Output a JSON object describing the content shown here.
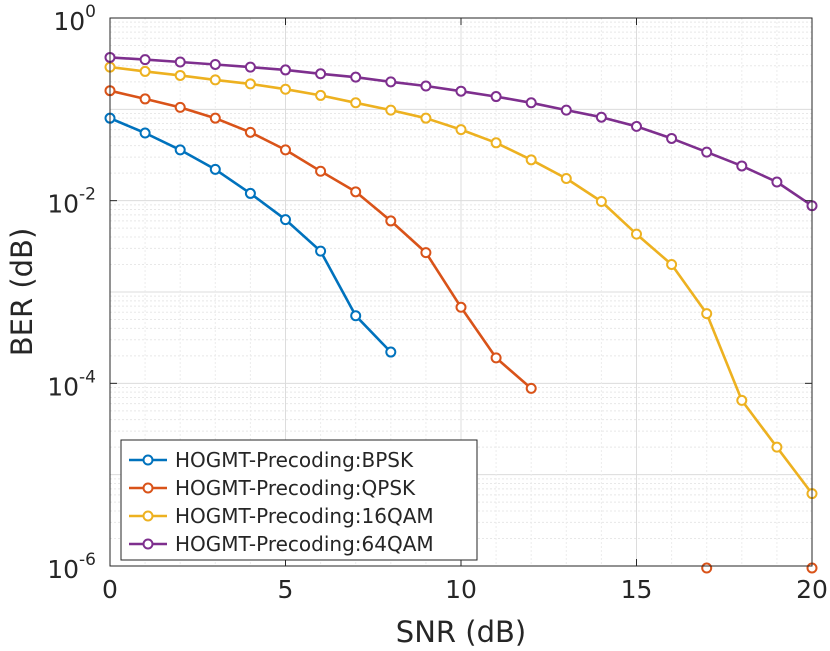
{
  "chart_data": {
    "type": "line",
    "title": "",
    "xlabel": "SNR (dB)",
    "ylabel": "BER (dB)",
    "xlim": [
      0,
      20
    ],
    "ylim": [
      1e-06,
      1
    ],
    "yscale": "log",
    "grid": true,
    "x_ticks": [
      {
        "value": 0,
        "label": "0"
      },
      {
        "value": 5,
        "label": "5"
      },
      {
        "value": 10,
        "label": "10"
      },
      {
        "value": 15,
        "label": "15"
      },
      {
        "value": 20,
        "label": "20"
      }
    ],
    "y_ticks": [
      {
        "value": 1,
        "base": "10",
        "exp": "0"
      },
      {
        "value": 0.01,
        "base": "10",
        "exp": "-2"
      },
      {
        "value": 0.0001,
        "base": "10",
        "exp": "-4"
      },
      {
        "value": 1e-06,
        "base": "10",
        "exp": "-6"
      }
    ],
    "legend_position": "bottom-left",
    "series": [
      {
        "name": "HOGMT-Precoding:BPSK",
        "color": "#0072BD",
        "x": [
          0,
          1,
          2,
          3,
          4,
          5,
          6,
          7,
          8
        ],
        "y": [
          0.08,
          0.055,
          0.036,
          0.022,
          0.012,
          0.0062,
          0.0028,
          0.00055,
          0.00022
        ]
      },
      {
        "name": "HOGMT-Precoding:QPSK",
        "color": "#D95319",
        "x": [
          0,
          1,
          2,
          3,
          4,
          5,
          6,
          7,
          8,
          9,
          10,
          11,
          12
        ],
        "y": [
          0.16,
          0.13,
          0.105,
          0.08,
          0.056,
          0.036,
          0.021,
          0.0125,
          0.006,
          0.0027,
          0.00068,
          0.00019,
          8.8e-05
        ]
      },
      {
        "name": "HOGMT-Precoding:16QAM",
        "color": "#EDB120",
        "x": [
          0,
          1,
          2,
          3,
          4,
          5,
          6,
          7,
          8,
          9,
          10,
          11,
          12,
          13,
          14,
          15,
          16,
          17,
          18,
          19,
          20
        ],
        "y": [
          0.29,
          0.26,
          0.235,
          0.21,
          0.19,
          0.166,
          0.142,
          0.118,
          0.098,
          0.08,
          0.06,
          0.043,
          0.028,
          0.0175,
          0.0098,
          0.0043,
          0.002,
          0.00058,
          6.5e-05,
          2e-05,
          6.2e-06
        ]
      },
      {
        "name": "HOGMT-Precoding:64QAM",
        "color": "#7E2F8E",
        "x": [
          0,
          1,
          2,
          3,
          4,
          5,
          6,
          7,
          8,
          9,
          10,
          11,
          12,
          13,
          14,
          15,
          16,
          17,
          18,
          19,
          20
        ],
        "y": [
          0.37,
          0.35,
          0.33,
          0.31,
          0.29,
          0.27,
          0.245,
          0.225,
          0.2,
          0.18,
          0.158,
          0.138,
          0.118,
          0.098,
          0.082,
          0.065,
          0.048,
          0.034,
          0.024,
          0.016,
          0.0088
        ]
      }
    ],
    "extra_markers": [
      {
        "series": "HOGMT-Precoding:QPSK",
        "x": 17,
        "y": 9.5e-07
      },
      {
        "series": "HOGMT-Precoding:QPSK",
        "x": 20,
        "y": 9.5e-07
      }
    ]
  }
}
